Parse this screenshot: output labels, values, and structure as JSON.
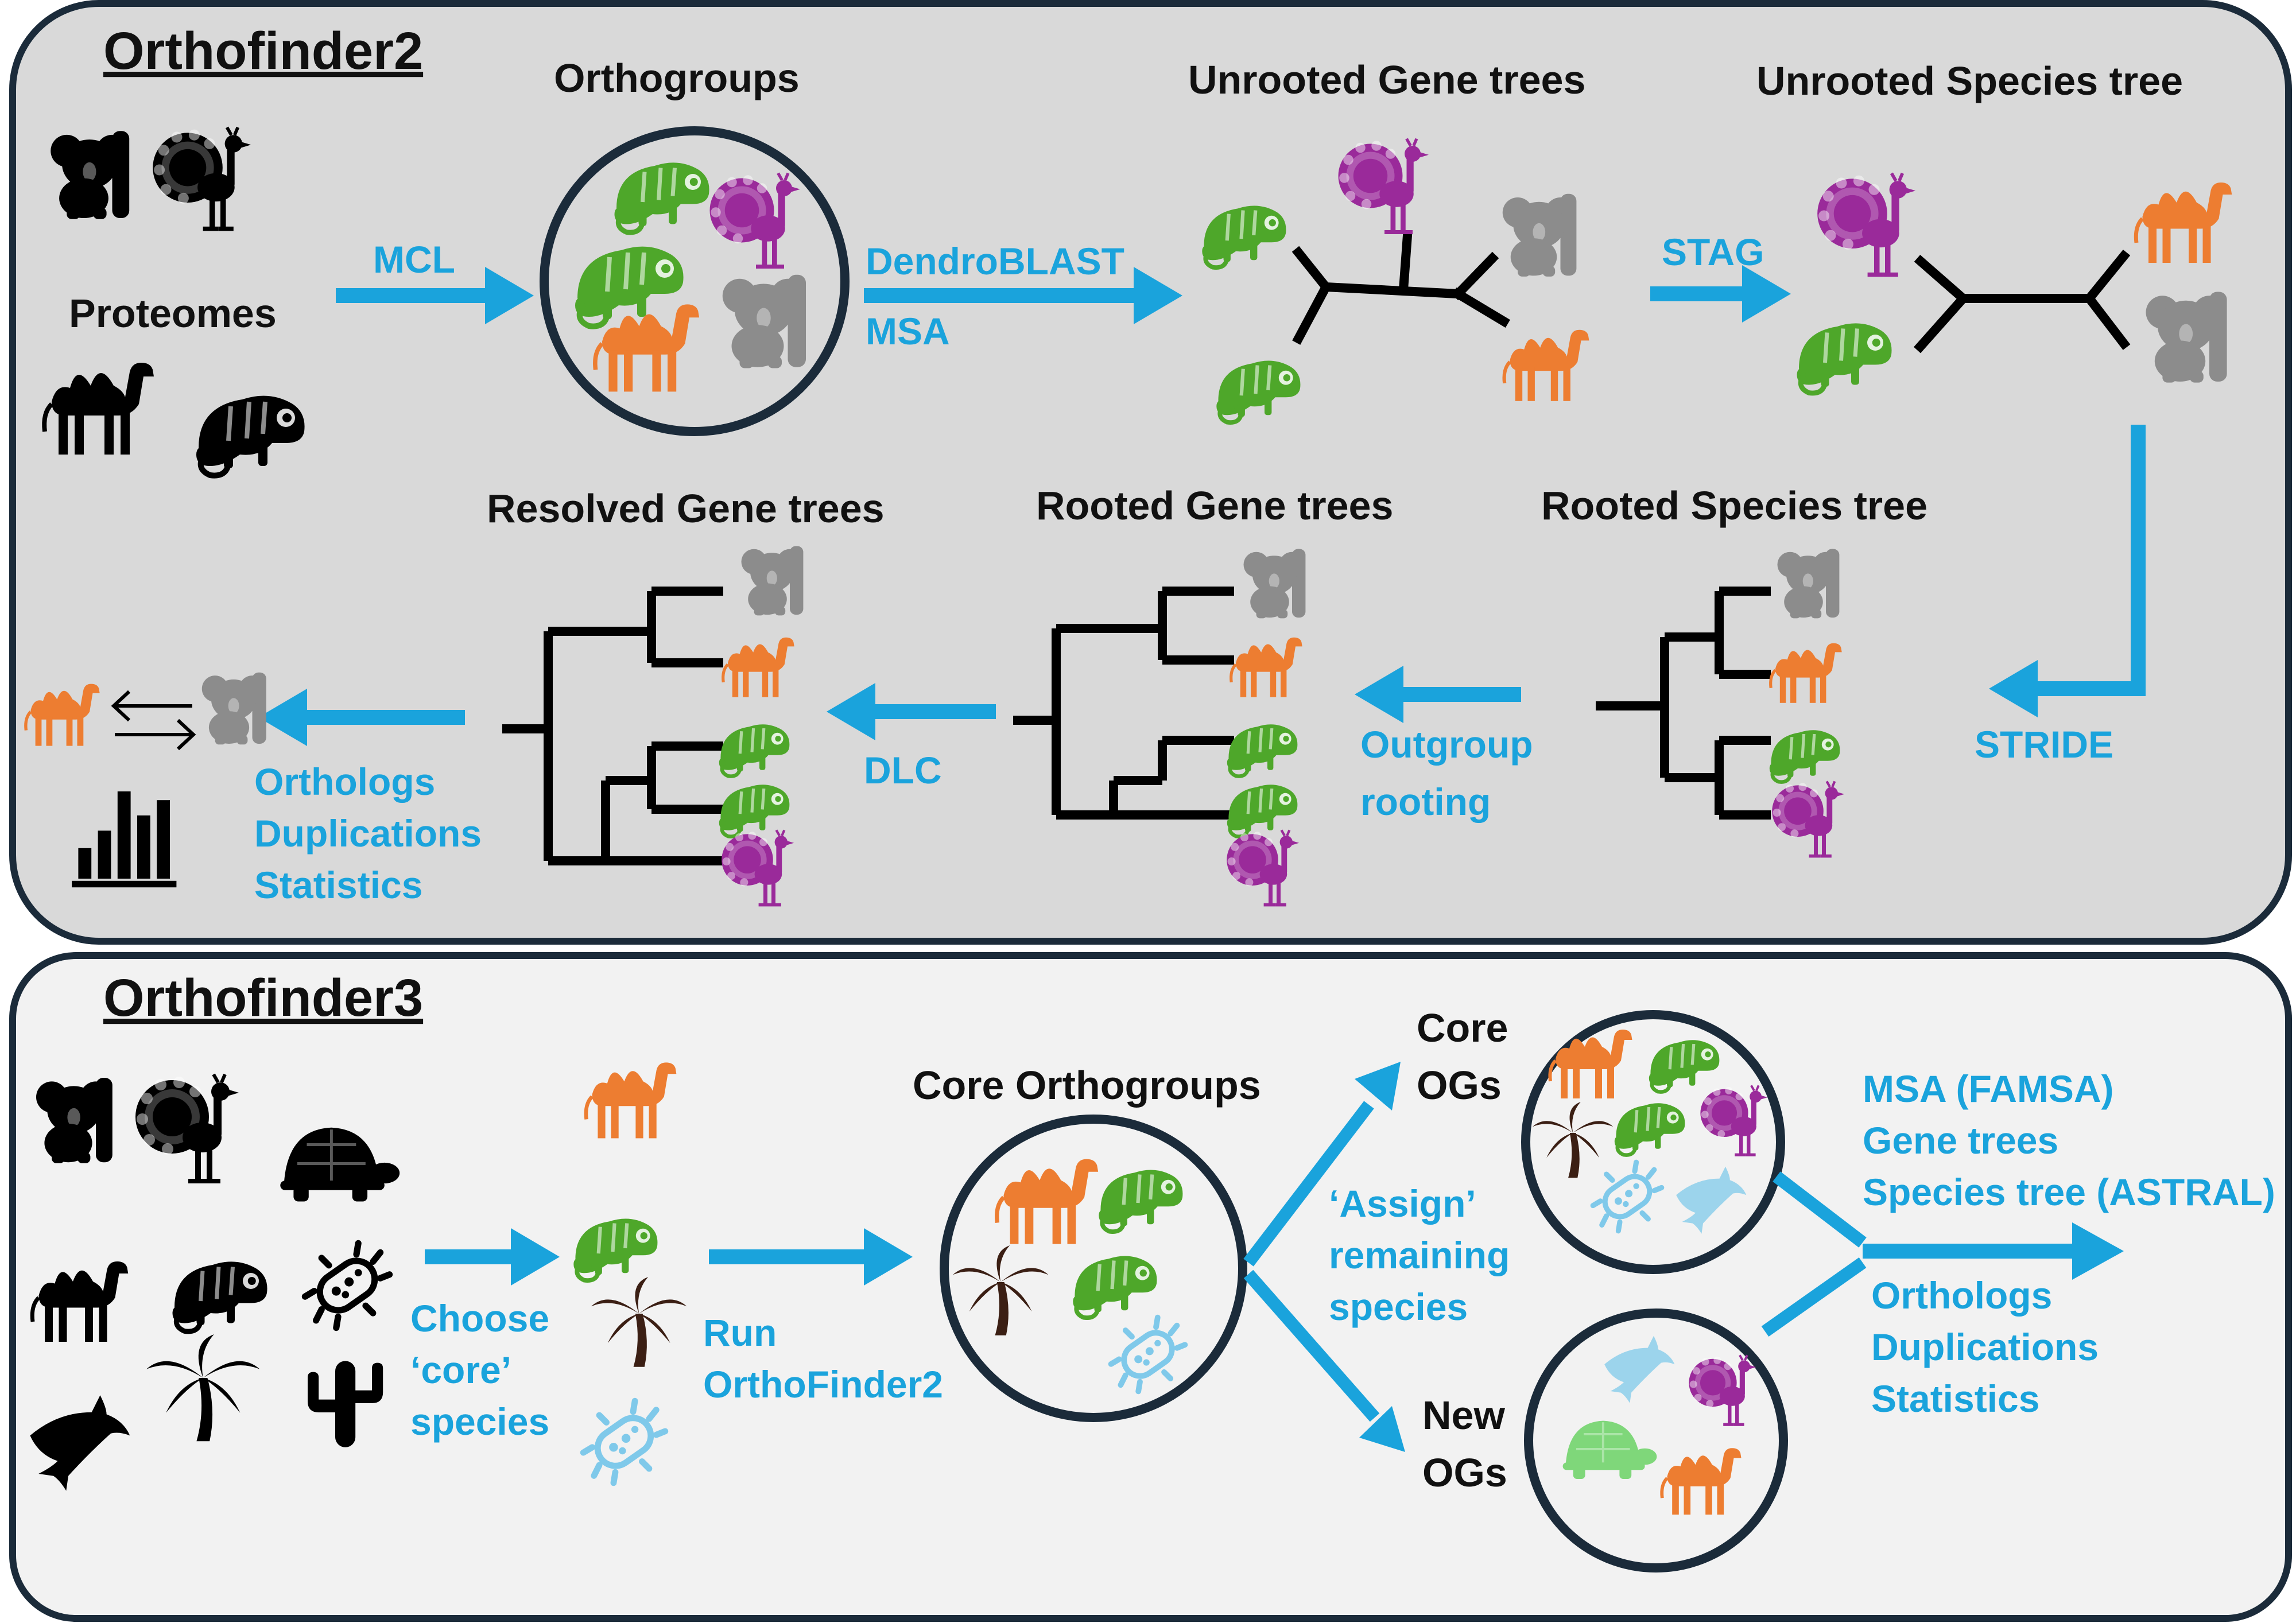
{
  "colors": {
    "panel2_bg": "#d9d9d9",
    "panel3_bg": "#f2f2f2",
    "frame": "#1b2b3a",
    "accent": "#1aa3dc",
    "green": "#4ea72a",
    "purple": "#9a2a9a",
    "orange": "#ed7d31",
    "gray": "#8c8c8c",
    "black": "#000000",
    "lightblue": "#7fc9ea",
    "brown": "#3b1f14",
    "turtle_green": "#7fd77a"
  },
  "of2": {
    "title": "Orthofinder2",
    "proteomes": "Proteomes",
    "orthogroups": "Orthogroups",
    "unrooted_gene_trees": "Unrooted Gene trees",
    "unrooted_species_tree": "Unrooted Species tree",
    "rooted_species_tree": "Rooted Species tree",
    "rooted_gene_trees": "Rooted Gene trees",
    "resolved_gene_trees": "Resolved Gene trees",
    "mcl": "MCL",
    "dendroblast": "DendroBLAST",
    "msa": "MSA",
    "stag": "STAG",
    "stride": "STRIDE",
    "outgroup1": "Outgroup",
    "outgroup2": "rooting",
    "dlc": "DLC",
    "out1": "Orthologs",
    "out2": "Duplications",
    "out3": "Statistics"
  },
  "of3": {
    "title": "Orthofinder3",
    "choose1": "Choose",
    "choose2": "‘core’",
    "choose3": "species",
    "run1": "Run",
    "run2": "OrthoFinder2",
    "core_orthogroups": "Core Orthogroups",
    "assign1": "‘Assign’",
    "assign2": "remaining",
    "assign3": "species",
    "core_ogs1": "Core",
    "core_ogs2": "OGs",
    "new_ogs1": "New",
    "new_ogs2": "OGs",
    "msa_famsa": "MSA (FAMSA)",
    "gene_trees": "Gene trees",
    "species_tree": "Species tree (ASTRAL)",
    "out1": "Orthologs",
    "out2": "Duplications",
    "out3": "Statistics"
  },
  "icons": [
    "koala-icon",
    "peacock-icon",
    "camel-icon",
    "chameleon-icon",
    "turtle-icon",
    "bacterium-icon",
    "dolphin-icon",
    "palm-tree-icon",
    "cactus-icon",
    "bar-chart-icon",
    "exchange-arrows-icon"
  ]
}
